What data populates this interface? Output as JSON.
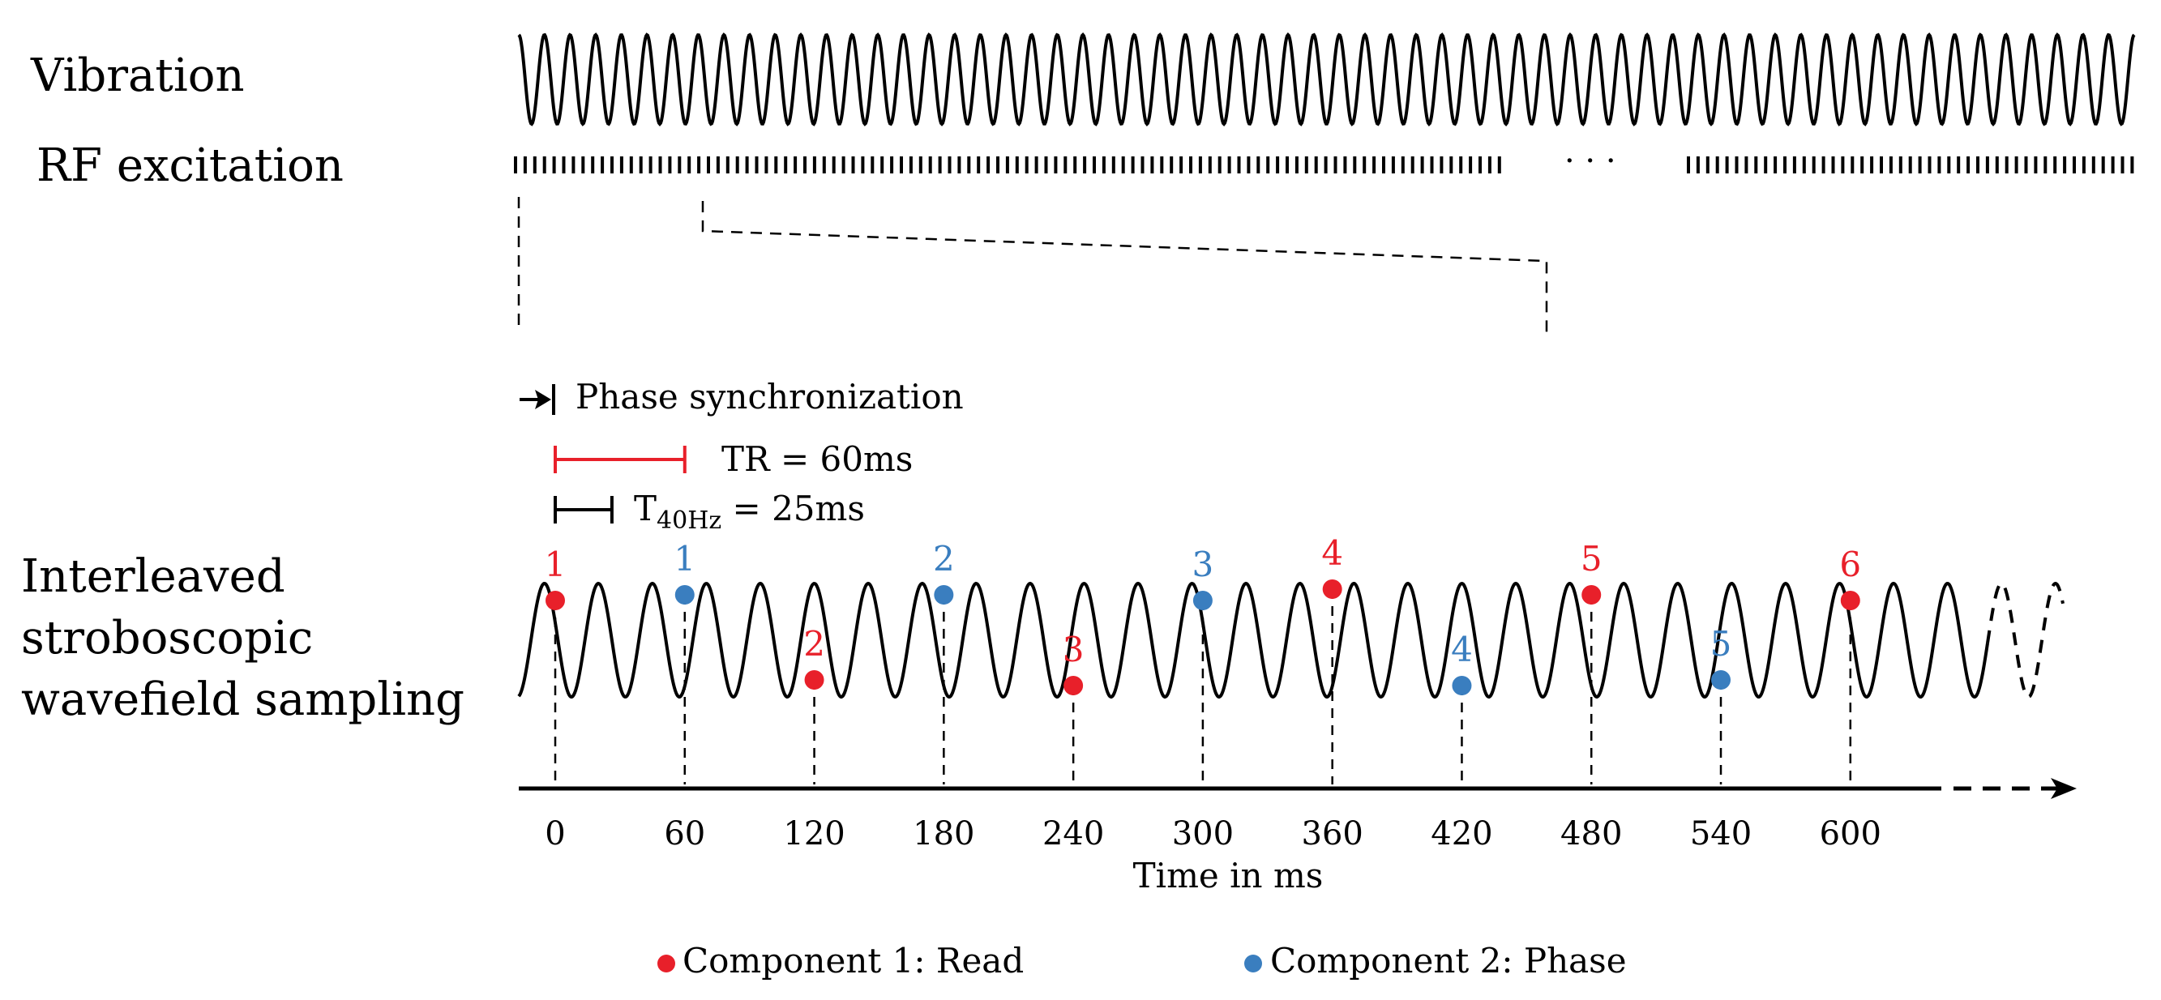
{
  "rows": {
    "vibration": "Vibration",
    "rf": "RF excitation",
    "interleaved": [
      "Interleaved",
      "stroboscopic",
      "wavefield sampling"
    ]
  },
  "rf_gap_symbol": "· · ·",
  "annotations": {
    "phase_sync": "Phase synchronization",
    "tr_label": "TR = 60ms",
    "t_prefix": "T",
    "t_sub": "40Hz",
    "t_suffix": " = 25ms"
  },
  "chart_data": {
    "type": "scatter",
    "title": "Interleaved stroboscopic wavefield sampling",
    "xlabel": "Time in ms",
    "ylabel": "",
    "xlim": [
      0,
      660
    ],
    "vibration_frequency_hz": 40,
    "tr_ms": 60,
    "period_ms": 25,
    "x_ticks": [
      0,
      60,
      120,
      180,
      240,
      300,
      360,
      420,
      480,
      540,
      600
    ],
    "series": [
      {
        "name": "Component 1: Read",
        "color": "#e8202a",
        "points": [
          {
            "t": 0,
            "label": "1",
            "phase": 0.85
          },
          {
            "t": 120,
            "label": "2",
            "phase": 0.15
          },
          {
            "t": 240,
            "label": "3",
            "phase": 0.1
          },
          {
            "t": 360,
            "label": "4",
            "phase": 0.95
          },
          {
            "t": 480,
            "label": "5",
            "phase": 0.9
          },
          {
            "t": 600,
            "label": "6",
            "phase": 0.85
          }
        ]
      },
      {
        "name": "Component 2: Phase",
        "color": "#3a7ebf",
        "points": [
          {
            "t": 60,
            "label": "1",
            "phase": 0.9
          },
          {
            "t": 180,
            "label": "2",
            "phase": 0.9
          },
          {
            "t": 300,
            "label": "3",
            "phase": 0.85
          },
          {
            "t": 420,
            "label": "4",
            "phase": 0.1
          },
          {
            "t": 540,
            "label": "5",
            "phase": 0.15
          }
        ]
      }
    ]
  },
  "legend": [
    {
      "label": "Component 1: Read",
      "color": "#e8202a"
    },
    {
      "label": "Component 2: Phase",
      "color": "#3a7ebf"
    }
  ],
  "colors": {
    "red": "#e8202a",
    "blue": "#3a7ebf",
    "ink": "#000000"
  }
}
